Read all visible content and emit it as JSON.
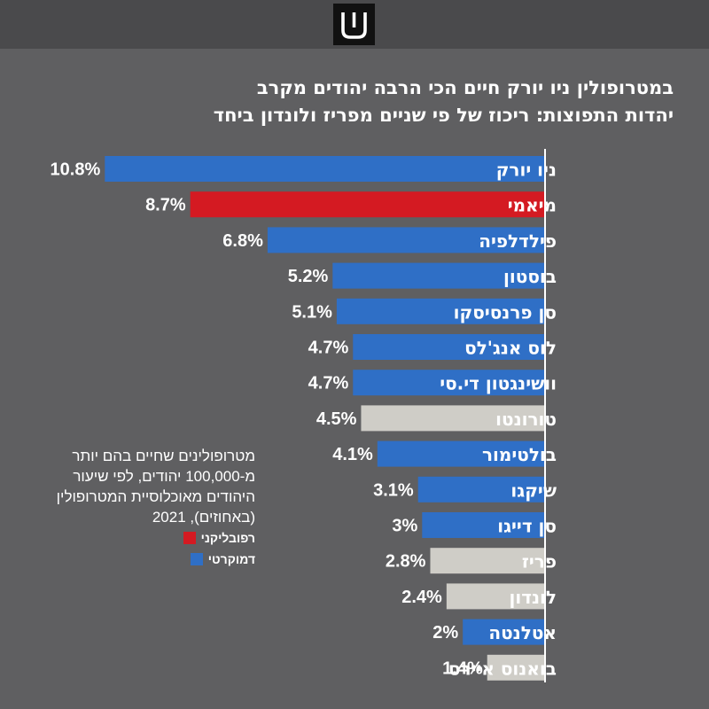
{
  "header": {
    "logo_icon": "haaretz-shin-logo-icon"
  },
  "colors": {
    "background": "#5f5f61",
    "democrat": "#2f6fc6",
    "republican": "#d41a22",
    "other": "#cfcdc7",
    "text": "#ffffff"
  },
  "chart_data": {
    "type": "bar",
    "orientation": "horizontal",
    "title_lines": [
      "במטרופולין ניו יורק חיים הכי הרבה יהודים מקרב",
      "יהדות התפוצות: ריכוז של פי שניים מפריז ולונדון ביחד"
    ],
    "categories": [
      "ניו יורק",
      "מיאמי",
      "פילדלפיה",
      "בוסטון",
      "סן פרנסיסקו",
      "לוס אנג'לס",
      "וושינגטון די.סי",
      "טורונטו",
      "בולטימור",
      "שיקגו",
      "סן דייגו",
      "פריז",
      "לונדון",
      "אטלנטה",
      "בואנוס איירס"
    ],
    "values": [
      10.8,
      8.7,
      6.8,
      5.2,
      5.1,
      4.7,
      4.7,
      4.5,
      4.1,
      3.1,
      3.0,
      2.8,
      2.4,
      2.0,
      1.4
    ],
    "value_labels": [
      "10.8%",
      "8.7%",
      "6.8%",
      "5.2%",
      "5.1%",
      "4.7%",
      "4.7%",
      "4.5%",
      "4.1%",
      "3.1%",
      "3%",
      "2.8%",
      "2.4%",
      "2%",
      "1.4%"
    ],
    "groups": [
      "democrat",
      "republican",
      "democrat",
      "democrat",
      "democrat",
      "democrat",
      "democrat",
      "other",
      "democrat",
      "democrat",
      "democrat",
      "other",
      "other",
      "democrat",
      "other"
    ],
    "xlim": [
      0,
      11
    ],
    "unit": "%"
  },
  "legend": {
    "description": "מטרופולינים שחיים בהם יותר מ-100,000 יהודים, לפי שיעור היהודים מאוכלוסיית המטרופולין (באחוזים), 2021",
    "items": [
      {
        "label": "רפובליקני",
        "color": "#d41a22"
      },
      {
        "label": "דמוקרטי",
        "color": "#2f6fc6"
      }
    ]
  }
}
